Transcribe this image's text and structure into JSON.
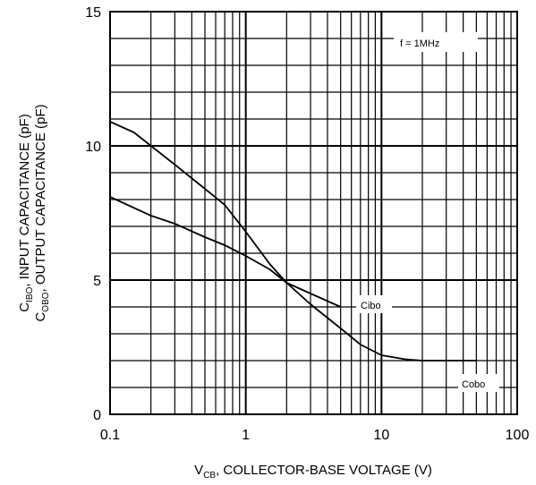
{
  "chart_data": {
    "type": "line",
    "xscale": "log",
    "xlim": [
      0.1,
      100
    ],
    "ylim": [
      0,
      15
    ],
    "x_ticks": [
      0.1,
      1,
      10,
      100
    ],
    "x_tick_labels": [
      "0.1",
      "1",
      "10",
      "100"
    ],
    "y_ticks": [
      0,
      5,
      10,
      15
    ],
    "y_tick_labels": [
      "0",
      "5",
      "10",
      "15"
    ],
    "grid": true,
    "xlabel": {
      "main": "V",
      "sub": "CB",
      "rest": ", COLLECTOR-BASE VOLTAGE (V)"
    },
    "ylabel_line1": {
      "main": "C",
      "sub": "IBO",
      "rest": ", INPUT CAPACITANCE (pF)"
    },
    "ylabel_line2": {
      "main": "C",
      "sub": "OBO",
      "rest": ", OUTPUT CAPACITANCE (pF)"
    },
    "annotation": "f = 1MHz",
    "series": [
      {
        "name": "Cibo",
        "x": [
          0.1,
          0.15,
          0.2,
          0.3,
          0.5,
          0.7,
          1.0,
          1.5,
          2.0,
          3.0,
          5.0
        ],
        "y": [
          10.9,
          10.5,
          10.0,
          9.3,
          8.4,
          7.8,
          6.8,
          5.6,
          4.9,
          4.5,
          4.0
        ]
      },
      {
        "name": "Cobo",
        "x": [
          0.1,
          0.2,
          0.3,
          0.5,
          0.7,
          1.0,
          1.5,
          2.0,
          3.0,
          5.0,
          7.0,
          10,
          15,
          20,
          30,
          50
        ],
        "y": [
          8.1,
          7.4,
          7.1,
          6.6,
          6.3,
          5.9,
          5.4,
          4.9,
          4.1,
          3.2,
          2.6,
          2.2,
          2.05,
          2.0,
          2.0,
          2.0
        ]
      }
    ]
  }
}
